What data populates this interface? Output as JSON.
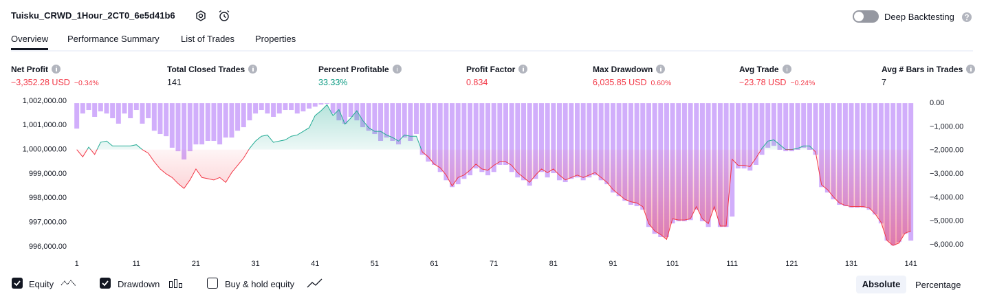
{
  "header": {
    "title": "Tuisku_CRWD_1Hour_2CT0_6e5d41b6",
    "deep_backtesting": "Deep Backtesting"
  },
  "tabs": [
    "Overview",
    "Performance Summary",
    "List of Trades",
    "Properties"
  ],
  "metrics": [
    {
      "label": "Net Profit",
      "value": "−3,352.28 USD",
      "change": "−0.34%",
      "color": "#f23645"
    },
    {
      "label": "Total Closed Trades",
      "value": "141",
      "color": "#131722"
    },
    {
      "label": "Percent Profitable",
      "value": "33.33%",
      "color": "#089981"
    },
    {
      "label": "Profit Factor",
      "value": "0.834",
      "color": "#f23645"
    },
    {
      "label": "Max Drawdown",
      "value": "6,035.85 USD",
      "change": "0.60%",
      "color": "#f23645"
    },
    {
      "label": "Avg Trade",
      "value": "−23.78 USD",
      "change": "−0.24%",
      "color": "#f23645"
    },
    {
      "label": "Avg # Bars in Trades",
      "value": "7",
      "color": "#131722"
    }
  ],
  "chart_data": {
    "type": "line",
    "x": [
      1,
      2,
      3,
      4,
      5,
      6,
      7,
      8,
      9,
      10,
      11,
      12,
      13,
      14,
      15,
      16,
      17,
      18,
      19,
      20,
      21,
      22,
      23,
      24,
      25,
      26,
      27,
      28,
      29,
      30,
      31,
      32,
      33,
      34,
      35,
      36,
      37,
      38,
      39,
      40,
      41,
      42,
      43,
      44,
      45,
      46,
      47,
      48,
      49,
      50,
      51,
      52,
      53,
      54,
      55,
      56,
      57,
      58,
      59,
      60,
      61,
      62,
      63,
      64,
      65,
      66,
      67,
      68,
      69,
      70,
      71,
      72,
      73,
      74,
      75,
      76,
      77,
      78,
      79,
      80,
      81,
      82,
      83,
      84,
      85,
      86,
      87,
      88,
      89,
      90,
      91,
      92,
      93,
      94,
      95,
      96,
      97,
      98,
      99,
      100,
      101,
      102,
      103,
      104,
      105,
      106,
      107,
      108,
      109,
      110,
      111,
      112,
      113,
      114,
      115,
      116,
      117,
      118,
      119,
      120,
      121,
      122,
      123,
      124,
      125,
      126,
      127,
      128,
      129,
      130,
      131,
      132,
      133,
      134,
      135,
      136,
      137,
      138,
      139,
      140,
      141
    ],
    "series": [
      {
        "name": "Equity",
        "color": "#22ab94",
        "color_below": "#f23645",
        "axis": "y",
        "values": [
          1000000,
          999700,
          1000100,
          999800,
          1000300,
          1000350,
          1000150,
          1000150,
          1000150,
          1000150,
          1000200,
          1000000,
          999850,
          999500,
          999200,
          999000,
          998850,
          998600,
          998400,
          998750,
          999200,
          998850,
          998800,
          998750,
          998850,
          998650,
          999050,
          999350,
          999650,
          1000050,
          1000350,
          1000550,
          1000600,
          1000300,
          1000350,
          1000400,
          1000550,
          1000600,
          1000750,
          1000900,
          1001400,
          1001600,
          1001850,
          1001400,
          1001650,
          1001050,
          1001300,
          1001600,
          1001200,
          1000900,
          1000750,
          1000750,
          1000600,
          1000500,
          1000350,
          1000600,
          1000550,
          1000550,
          999900,
          999700,
          999400,
          999250,
          998950,
          998500,
          998850,
          998950,
          999150,
          999400,
          999200,
          999150,
          999350,
          999500,
          999500,
          999350,
          999050,
          998850,
          998650,
          998950,
          999200,
          999050,
          999200,
          998950,
          998750,
          998850,
          998950,
          998850,
          998950,
          999050,
          998850,
          998650,
          998350,
          998150,
          997950,
          997850,
          997800,
          997650,
          996950,
          996650,
          996500,
          996300,
          997150,
          997100,
          997100,
          997150,
          997650,
          997150,
          996950,
          997650,
          996850,
          996850,
          999600,
          999350,
          999350,
          999300,
          999650,
          1000050,
          1000350,
          1000400,
          1000200,
          1000000,
          1000000,
          1000050,
          1000150,
          1000150,
          999900,
          998550,
          998350,
          998050,
          997800,
          997700,
          997650,
          997650,
          997650,
          997600,
          997350,
          997000,
          996250,
          996050,
          996150,
          996550,
          996647.72
        ]
      },
      {
        "name": "Drawdown",
        "type": "bar",
        "color": "#d1aefb",
        "axis": "y2",
        "values": [
          -1080,
          -440,
          -290,
          -580,
          -350,
          -440,
          -640,
          -870,
          -440,
          -640,
          -290,
          -870,
          -640,
          -1170,
          -1310,
          -1400,
          -1890,
          -2040,
          -2390,
          -2040,
          -1750,
          -1750,
          -1600,
          -1600,
          -1750,
          -1460,
          -1460,
          -1170,
          -1020,
          -730,
          -440,
          -290,
          -440,
          -580,
          -440,
          -290,
          -290,
          -440,
          -350,
          -230,
          -150,
          -60,
          -30,
          -440,
          -730,
          -870,
          -580,
          -730,
          -1020,
          -1170,
          -1310,
          -1600,
          -1460,
          -1600,
          -1750,
          -1460,
          -1600,
          -1310,
          -2190,
          -2480,
          -2620,
          -2920,
          -3270,
          -3560,
          -3440,
          -3210,
          -3060,
          -2770,
          -2920,
          -3060,
          -2920,
          -2620,
          -2620,
          -2920,
          -3150,
          -3270,
          -3500,
          -3210,
          -2920,
          -3150,
          -2970,
          -3270,
          -3350,
          -3210,
          -3150,
          -3270,
          -3150,
          -3060,
          -3270,
          -3440,
          -3790,
          -3940,
          -4140,
          -4310,
          -4370,
          -4520,
          -5250,
          -5540,
          -5680,
          -5680,
          -5100,
          -5010,
          -5010,
          -4960,
          -4520,
          -5010,
          -5250,
          -4520,
          -5250,
          -5250,
          -4810,
          -2770,
          -2770,
          -2860,
          -2620,
          -2190,
          -1890,
          -1810,
          -1980,
          -2040,
          -2040,
          -1980,
          -1890,
          -1980,
          -2190,
          -3560,
          -3790,
          -4080,
          -4310,
          -4370,
          -4430,
          -4430,
          -4430,
          -4520,
          -4720,
          -5100,
          -5830,
          -6035.85,
          -5890,
          -5540,
          -5830
        ]
      }
    ],
    "xlim": [
      0,
      143
    ],
    "xticks": [
      1,
      11,
      21,
      31,
      41,
      51,
      61,
      71,
      81,
      91,
      101,
      111,
      121,
      131,
      141
    ],
    "ylim": [
      995900,
      1002000
    ],
    "yticks": [
      {
        "value": 996000,
        "label": "996,000.00"
      },
      {
        "value": 997000,
        "label": "997,000.00"
      },
      {
        "value": 998000,
        "label": "998,000.00"
      },
      {
        "value": 999000,
        "label": "999,000.00"
      },
      {
        "value": 1000000,
        "label": "1,000,000.00"
      },
      {
        "value": 1001000,
        "label": "1,001,000.00"
      },
      {
        "value": 1002000,
        "label": "1,002,000.00"
      }
    ],
    "y2lim": [
      -6190,
      90
    ],
    "y2ticks": [
      {
        "value": 0,
        "label": "0.00"
      },
      {
        "value": -1000,
        "label": "−1,000.00"
      },
      {
        "value": -2000,
        "label": "−2,000.00"
      },
      {
        "value": -3000,
        "label": "−3,000.00"
      },
      {
        "value": -4000,
        "label": "−4,000.00"
      },
      {
        "value": -5000,
        "label": "−5,000.00"
      },
      {
        "value": -6000,
        "label": "−6,000.00"
      }
    ],
    "grid": false
  },
  "controls": {
    "buy_hold": "Buy & hold equity",
    "absolute": "Absolute",
    "percentage": "Percentage"
  }
}
